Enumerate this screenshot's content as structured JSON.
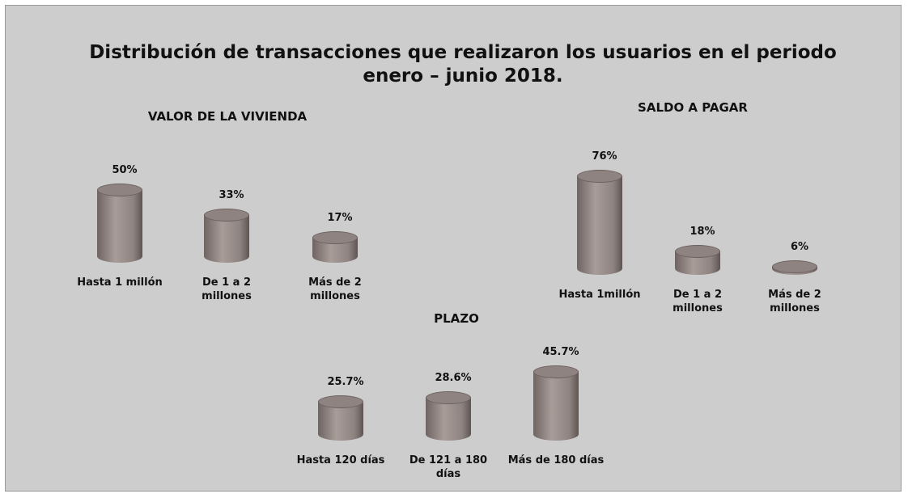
{
  "title": "Distribución de transacciones que realizaron los usuarios en el periodo enero – junio 2018.",
  "chart_data": [
    {
      "type": "bar",
      "title": "VALOR DE LA VIVIENDA",
      "color": "#8e8380",
      "categories": [
        "Hasta 1 millón",
        "De 1 a 2 millones",
        "Más de 2 millones"
      ],
      "values": [
        50,
        33,
        17
      ],
      "value_labels": [
        "50%",
        "33%",
        "17%"
      ]
    },
    {
      "type": "bar",
      "title": "SALDO A PAGAR",
      "color": "#8e8380",
      "categories": [
        "Hasta 1millón",
        "De 1 a 2 millones",
        "Más de 2 millones"
      ],
      "values": [
        76,
        18,
        6
      ],
      "value_labels": [
        "76%",
        "18%",
        "6%"
      ]
    },
    {
      "type": "bar",
      "title": "PLAZO",
      "color": "#8e8380",
      "categories": [
        "Hasta 120 días",
        "De 121 a 180 días",
        "Más de 180 días"
      ],
      "values": [
        25.7,
        28.6,
        45.7
      ],
      "value_labels": [
        "25.7%",
        "28.6%",
        "45.7%"
      ]
    }
  ]
}
